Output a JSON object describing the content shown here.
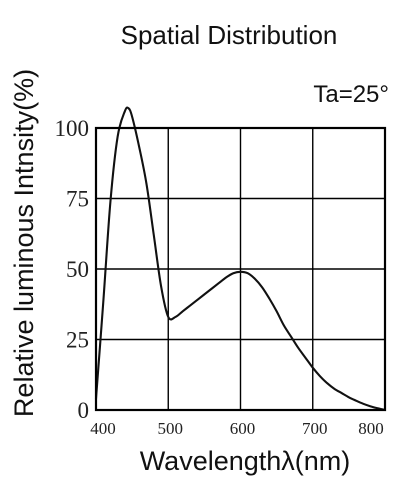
{
  "chart_data": {
    "type": "line",
    "title": "Spatial Distribution",
    "annotation": "Ta=25°",
    "xlabel": "Wavelengthλ(nm)",
    "ylabel": "Relative luminous Intnsity(%)",
    "xlim": [
      400,
      800
    ],
    "ylim": [
      0,
      100
    ],
    "x_ticks": [
      400,
      500,
      600,
      700,
      800
    ],
    "x_tick_labels": [
      "400",
      "500",
      "600",
      "700",
      "800"
    ],
    "y_ticks": [
      0,
      25,
      50,
      75,
      100
    ],
    "y_tick_labels": [
      "0",
      "25",
      "50",
      "75",
      "100"
    ],
    "grid": true,
    "colors": {
      "line": "#111111",
      "grid": "#000000",
      "text": "#111111"
    },
    "series": [
      {
        "x": [
          400,
          410,
          420,
          430,
          440,
          445,
          450,
          460,
          470,
          480,
          490,
          500,
          510,
          520,
          530,
          540,
          550,
          560,
          570,
          580,
          590,
          600,
          610,
          620,
          630,
          640,
          650,
          660,
          670,
          680,
          690,
          700,
          710,
          720,
          730,
          740,
          750,
          760,
          770,
          780,
          790,
          800
        ],
        "y": [
          4,
          38,
          74,
          97,
          106,
          107,
          104,
          93,
          80,
          62,
          44,
          33,
          33,
          35,
          37,
          39,
          41,
          43,
          45,
          47,
          48.5,
          49,
          48.5,
          46.5,
          43.5,
          39.5,
          35,
          30,
          26,
          22,
          18.5,
          15,
          12,
          9.5,
          7.5,
          6,
          4.5,
          3.3,
          2.2,
          1.3,
          0.6,
          0
        ]
      }
    ]
  }
}
